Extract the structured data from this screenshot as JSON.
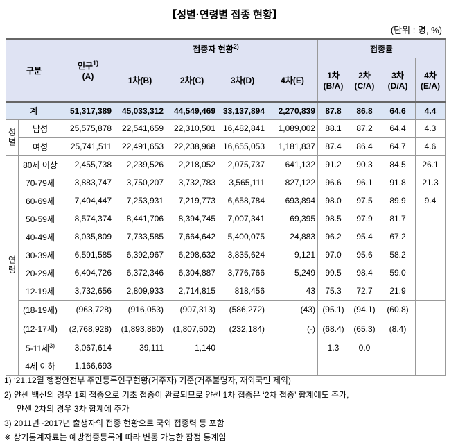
{
  "header": {
    "title": "【성별·연령별 접종 현황】",
    "unit": "(단위 : 명, %)"
  },
  "table": {
    "head": {
      "group": "구분",
      "population": {
        "label": "인구",
        "note": "1)",
        "sub": "(A)"
      },
      "vaccinated": {
        "label": "접종자 현황",
        "note": "2)",
        "columns": [
          "1차(B)",
          "2차(C)",
          "3차(D)",
          "4차(E)"
        ]
      },
      "rate": {
        "label": "접종률",
        "columns": [
          "1차\n(B/A)",
          "2차\n(C/A)",
          "3차\n(D/A)",
          "4차\n(E/A)"
        ]
      }
    },
    "total": {
      "label": "계",
      "cells": [
        "51,317,389",
        "45,033,312",
        "44,549,469",
        "33,137,894",
        "2,270,839",
        "87.8",
        "86.8",
        "64.6",
        "4.4"
      ]
    },
    "groups": [
      {
        "label": "성별",
        "rows": [
          {
            "label": "남성",
            "cells": [
              "25,575,878",
              "22,541,659",
              "22,310,501",
              "16,482,841",
              "1,089,002",
              "88.1",
              "87.2",
              "64.4",
              "4.3"
            ]
          },
          {
            "label": "여성",
            "cells": [
              "25,741,511",
              "22,491,653",
              "22,238,968",
              "16,655,053",
              "1,181,837",
              "87.4",
              "86.4",
              "64.7",
              "4.6"
            ]
          }
        ]
      },
      {
        "label": "연령",
        "rows": [
          {
            "label": "80세 이상",
            "cells": [
              "2,455,738",
              "2,239,526",
              "2,218,052",
              "2,075,737",
              "641,132",
              "91.2",
              "90.3",
              "84.5",
              "26.1"
            ]
          },
          {
            "label": "70-79세",
            "cells": [
              "3,883,747",
              "3,750,207",
              "3,732,783",
              "3,565,111",
              "827,122",
              "96.6",
              "96.1",
              "91.8",
              "21.3"
            ]
          },
          {
            "label": "60-69세",
            "cells": [
              "7,404,447",
              "7,253,931",
              "7,219,773",
              "6,658,784",
              "693,894",
              "98.0",
              "97.5",
              "89.9",
              "9.4"
            ]
          },
          {
            "label": "50-59세",
            "cells": [
              "8,574,374",
              "8,441,706",
              "8,394,745",
              "7,007,341",
              "69,395",
              "98.5",
              "97.9",
              "81.7",
              null
            ]
          },
          {
            "label": "40-49세",
            "cells": [
              "8,035,809",
              "7,733,585",
              "7,664,642",
              "5,400,075",
              "24,883",
              "96.2",
              "95.4",
              "67.2",
              null
            ]
          },
          {
            "label": "30-39세",
            "cells": [
              "6,591,585",
              "6,392,967",
              "6,298,632",
              "3,835,624",
              "9,121",
              "97.0",
              "95.6",
              "58.2",
              null
            ]
          },
          {
            "label": "20-29세",
            "cells": [
              "6,404,726",
              "6,372,346",
              "6,304,887",
              "3,776,766",
              "5,249",
              "99.5",
              "98.4",
              "59.0",
              null
            ]
          },
          {
            "label": "12-19세",
            "cells": [
              "3,732,656",
              "2,809,933",
              "2,714,815",
              "818,456",
              "43",
              "75.3",
              "72.7",
              "21.9",
              null
            ]
          },
          {
            "label": "(18-19세)",
            "cells": [
              "(963,728)",
              "(916,053)",
              "(907,313)",
              "(586,272)",
              "(43)",
              "(95.1)",
              "(94.1)",
              "(60.8)",
              null
            ]
          },
          {
            "label": "(12-17세)",
            "cells": [
              "(2,768,928)",
              "(1,893,880)",
              "(1,807,502)",
              "(232,184)",
              "(-)",
              "(68.4)",
              "(65.3)",
              "(8.4)",
              null
            ]
          },
          {
            "label": "5-11세",
            "note": "3)",
            "cells": [
              "3,067,614",
              "39,111",
              "1,140",
              null,
              null,
              "1.3",
              "0.0",
              null,
              null
            ]
          },
          {
            "label": "4세 이하",
            "cells": [
              "1,166,693",
              null,
              null,
              null,
              null,
              null,
              null,
              null,
              null
            ]
          }
        ]
      }
    ]
  },
  "footnotes": [
    "1) ‘21.12월 행정안전부 주민등록인구현황(거주자) 기준(거주불명자, 재외국민 제외)",
    "2) 얀센 백신의 경우 1회 접종으로 기초 접종이 완료되므로 얀센 1차 접종은 ‘2차 접종’ 합계에도 추가,",
    "얀센 2차의 경우 3차 합계에 추가",
    "3) 2011년~2017년 출생자의 접종 현황으로 국외 접종력 등 포함",
    "※ 상기통계자료는 예방접종등록에 따라 변동 가능한 잠정 통계임"
  ]
}
